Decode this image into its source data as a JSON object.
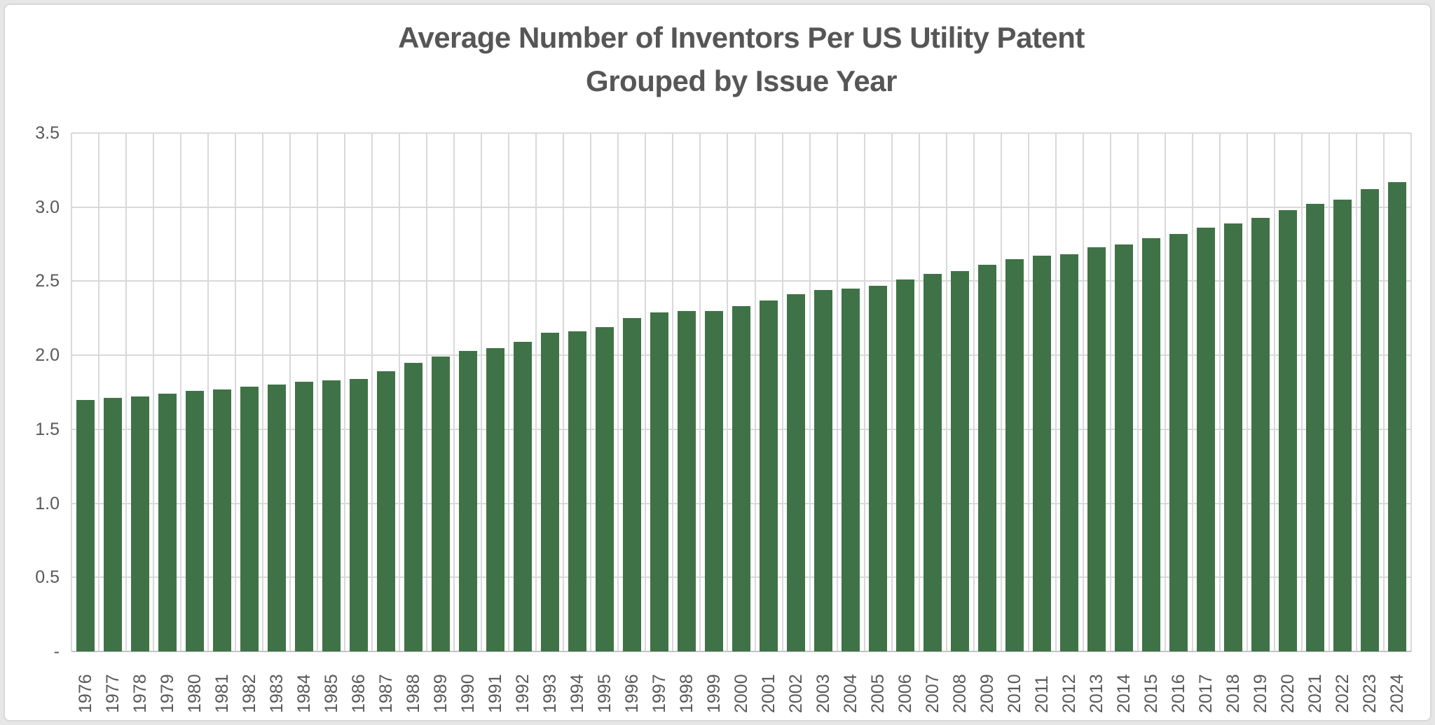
{
  "chart_data": {
    "type": "bar",
    "title": "Average Number of Inventors Per US Utility Patent",
    "subtitle": "Grouped by Issue Year",
    "categories": [
      "1976",
      "1977",
      "1978",
      "1979",
      "1980",
      "1981",
      "1982",
      "1983",
      "1984",
      "1985",
      "1986",
      "1987",
      "1988",
      "1989",
      "1990",
      "1991",
      "1992",
      "1993",
      "1994",
      "1995",
      "1996",
      "1997",
      "1998",
      "1999",
      "2000",
      "2001",
      "2002",
      "2003",
      "2004",
      "2005",
      "2006",
      "2007",
      "2008",
      "2009",
      "2010",
      "2011",
      "2012",
      "2013",
      "2014",
      "2015",
      "2016",
      "2017",
      "2018",
      "2019",
      "2020",
      "2021",
      "2022",
      "2023",
      "2024"
    ],
    "values": [
      1.7,
      1.71,
      1.72,
      1.74,
      1.76,
      1.77,
      1.79,
      1.8,
      1.82,
      1.83,
      1.84,
      1.89,
      1.95,
      1.99,
      2.03,
      2.05,
      2.09,
      2.15,
      2.16,
      2.19,
      2.25,
      2.29,
      2.3,
      2.3,
      2.33,
      2.37,
      2.41,
      2.44,
      2.45,
      2.47,
      2.51,
      2.55,
      2.57,
      2.61,
      2.65,
      2.67,
      2.68,
      2.73,
      2.75,
      2.79,
      2.82,
      2.86,
      2.89,
      2.93,
      2.98,
      3.02,
      3.05,
      3.12,
      3.17
    ],
    "xlabel": "",
    "ylabel": "",
    "ylim": [
      0,
      3.5
    ],
    "y_tick_step": 0.5,
    "y_tick_labels": [
      "-",
      "0.5",
      "1.0",
      "1.5",
      "2.0",
      "2.5",
      "3.0",
      "3.5"
    ],
    "grid": true,
    "legend": "none",
    "bar_color": "#3f7347",
    "gridline_color": "#d9d9d9",
    "axis_line_color": "#c4c4c4",
    "label_color": "#595959",
    "title_color": "#565656"
  }
}
